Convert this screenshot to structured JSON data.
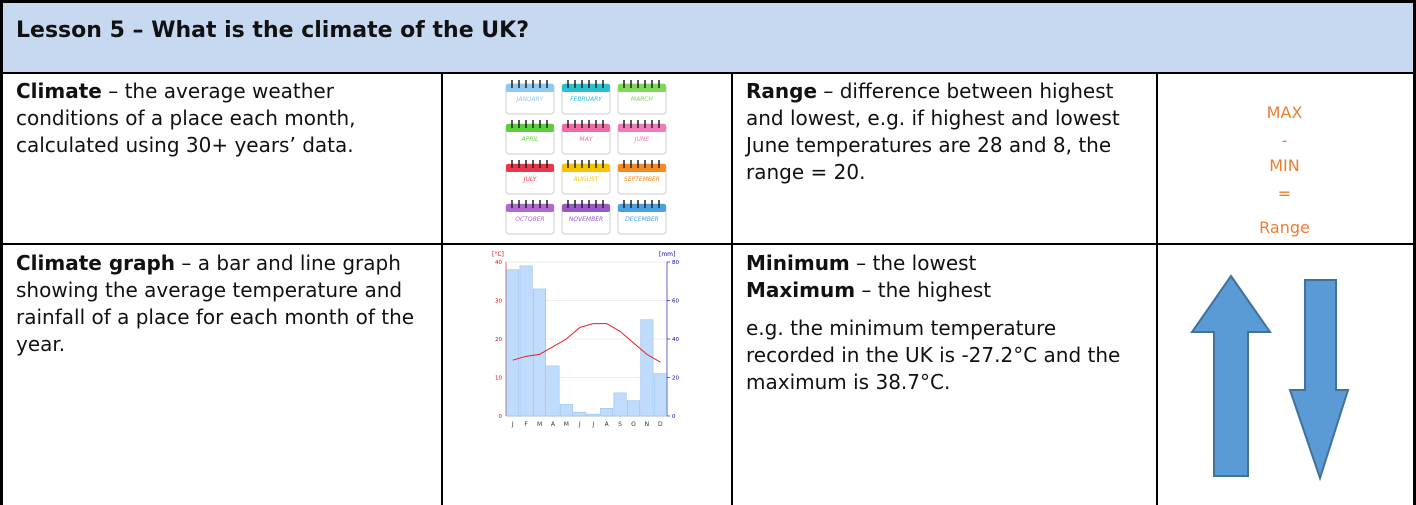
{
  "header": {
    "title": "Lesson 5 – What is the climate of the UK?"
  },
  "climate": {
    "term": "Climate",
    "definition": " – the average weather conditions of a place each month, calculated using 30+ years’ data."
  },
  "calendar": {
    "months": [
      "JANUARY",
      "FEBRUARY",
      "MARCH",
      "APRIL",
      "MAY",
      "JUNE",
      "JULY",
      "AUGUST",
      "SEPTEMBER",
      "OCTOBER",
      "NOVEMBER",
      "DECEMBER"
    ]
  },
  "range": {
    "term": "Range",
    "definition": " – difference between highest and lowest, e.g. if highest and lowest June temperatures are 28 and 8, the range = 20."
  },
  "formula": [
    "MAX",
    "-",
    "MIN",
    "=",
    "Range"
  ],
  "climate_graph": {
    "term": "Climate graph",
    "definition": " – a bar and line graph showing the average temperature and rainfall of a place for each month of the year."
  },
  "graph": {
    "type": "bar-line",
    "y_label": "[°C]",
    "y2_label": "[mm]",
    "categories": [
      "J",
      "F",
      "M",
      "A",
      "M",
      "J",
      "J",
      "A",
      "S",
      "O",
      "N",
      "D"
    ],
    "ylim": [
      0,
      40
    ],
    "yticks": [
      0,
      10,
      20,
      30,
      40
    ],
    "y2lim": [
      0,
      80
    ],
    "y2ticks": [
      0,
      20,
      40,
      60,
      80
    ],
    "series": [
      {
        "name": "rainfall",
        "axis": "y2",
        "color": "#bfdcff",
        "values": [
          76,
          78,
          66,
          26,
          6,
          2,
          1,
          4,
          12,
          8,
          50,
          22
        ]
      },
      {
        "name": "temperature",
        "color": "#e02020",
        "values": [
          14.5,
          15.5,
          16,
          18,
          20,
          23,
          24,
          24,
          22,
          19,
          16,
          14
        ]
      }
    ]
  },
  "min_max": {
    "minimum_term": "Minimum",
    "minimum_definition": " – the lowest",
    "maximum_term": "Maximum",
    "maximum_definition": " – the highest",
    "example": "e.g. the minimum temperature recorded in the UK is -27.2°C and the maximum is 38.7°C."
  }
}
